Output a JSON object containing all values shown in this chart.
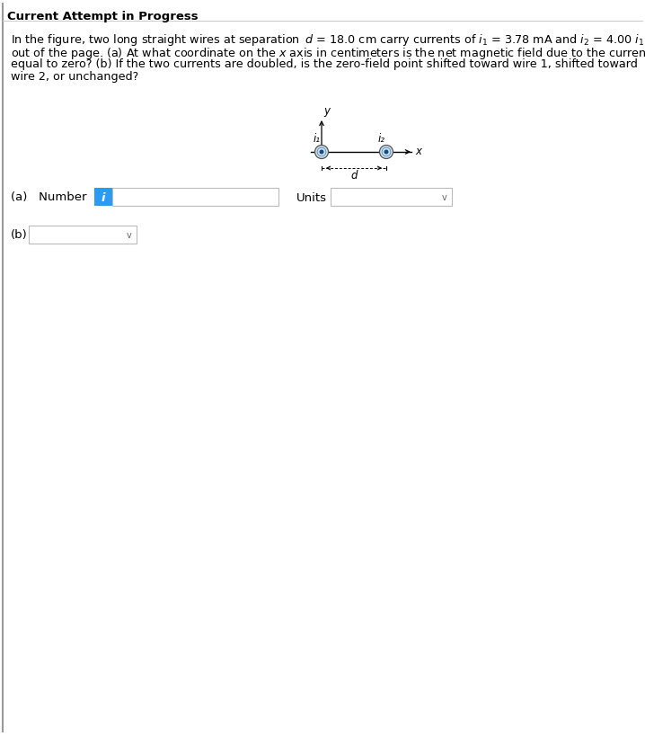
{
  "title": "Current Attempt in Progress",
  "line1": "In the figure, two long straight wires at separation d = 18.0 cm carry currents of i₁ = 3.78 mA and i₂ = 4.00 i₁",
  "line2": "out of the page. (a) At what coordinate on the x axis in centimeters is the net magnetic field due to the currents",
  "line3": "equal to zero? (b) If the two currents are doubled, is the zero-field point shifted toward wire 1, shifted toward",
  "line4": "wire 2, or unchanged?",
  "label_a": "(a)   Number",
  "label_b": "(b)",
  "info_button_color": "#2b9af3",
  "info_button_text": "i",
  "units_label": "Units",
  "background_color": "#ffffff",
  "wire1_label": "i₁",
  "wire2_label": "i₂",
  "d_label": "d",
  "x_label": "x",
  "y_label": "y",
  "title_fontsize": 9.5,
  "body_fontsize": 9.2,
  "diagram_fontsize": 8.5,
  "ui_fontsize": 9.5,
  "outer_border_color": "#cccccc",
  "inner_border_color": "#cccccc",
  "chevron": "v"
}
